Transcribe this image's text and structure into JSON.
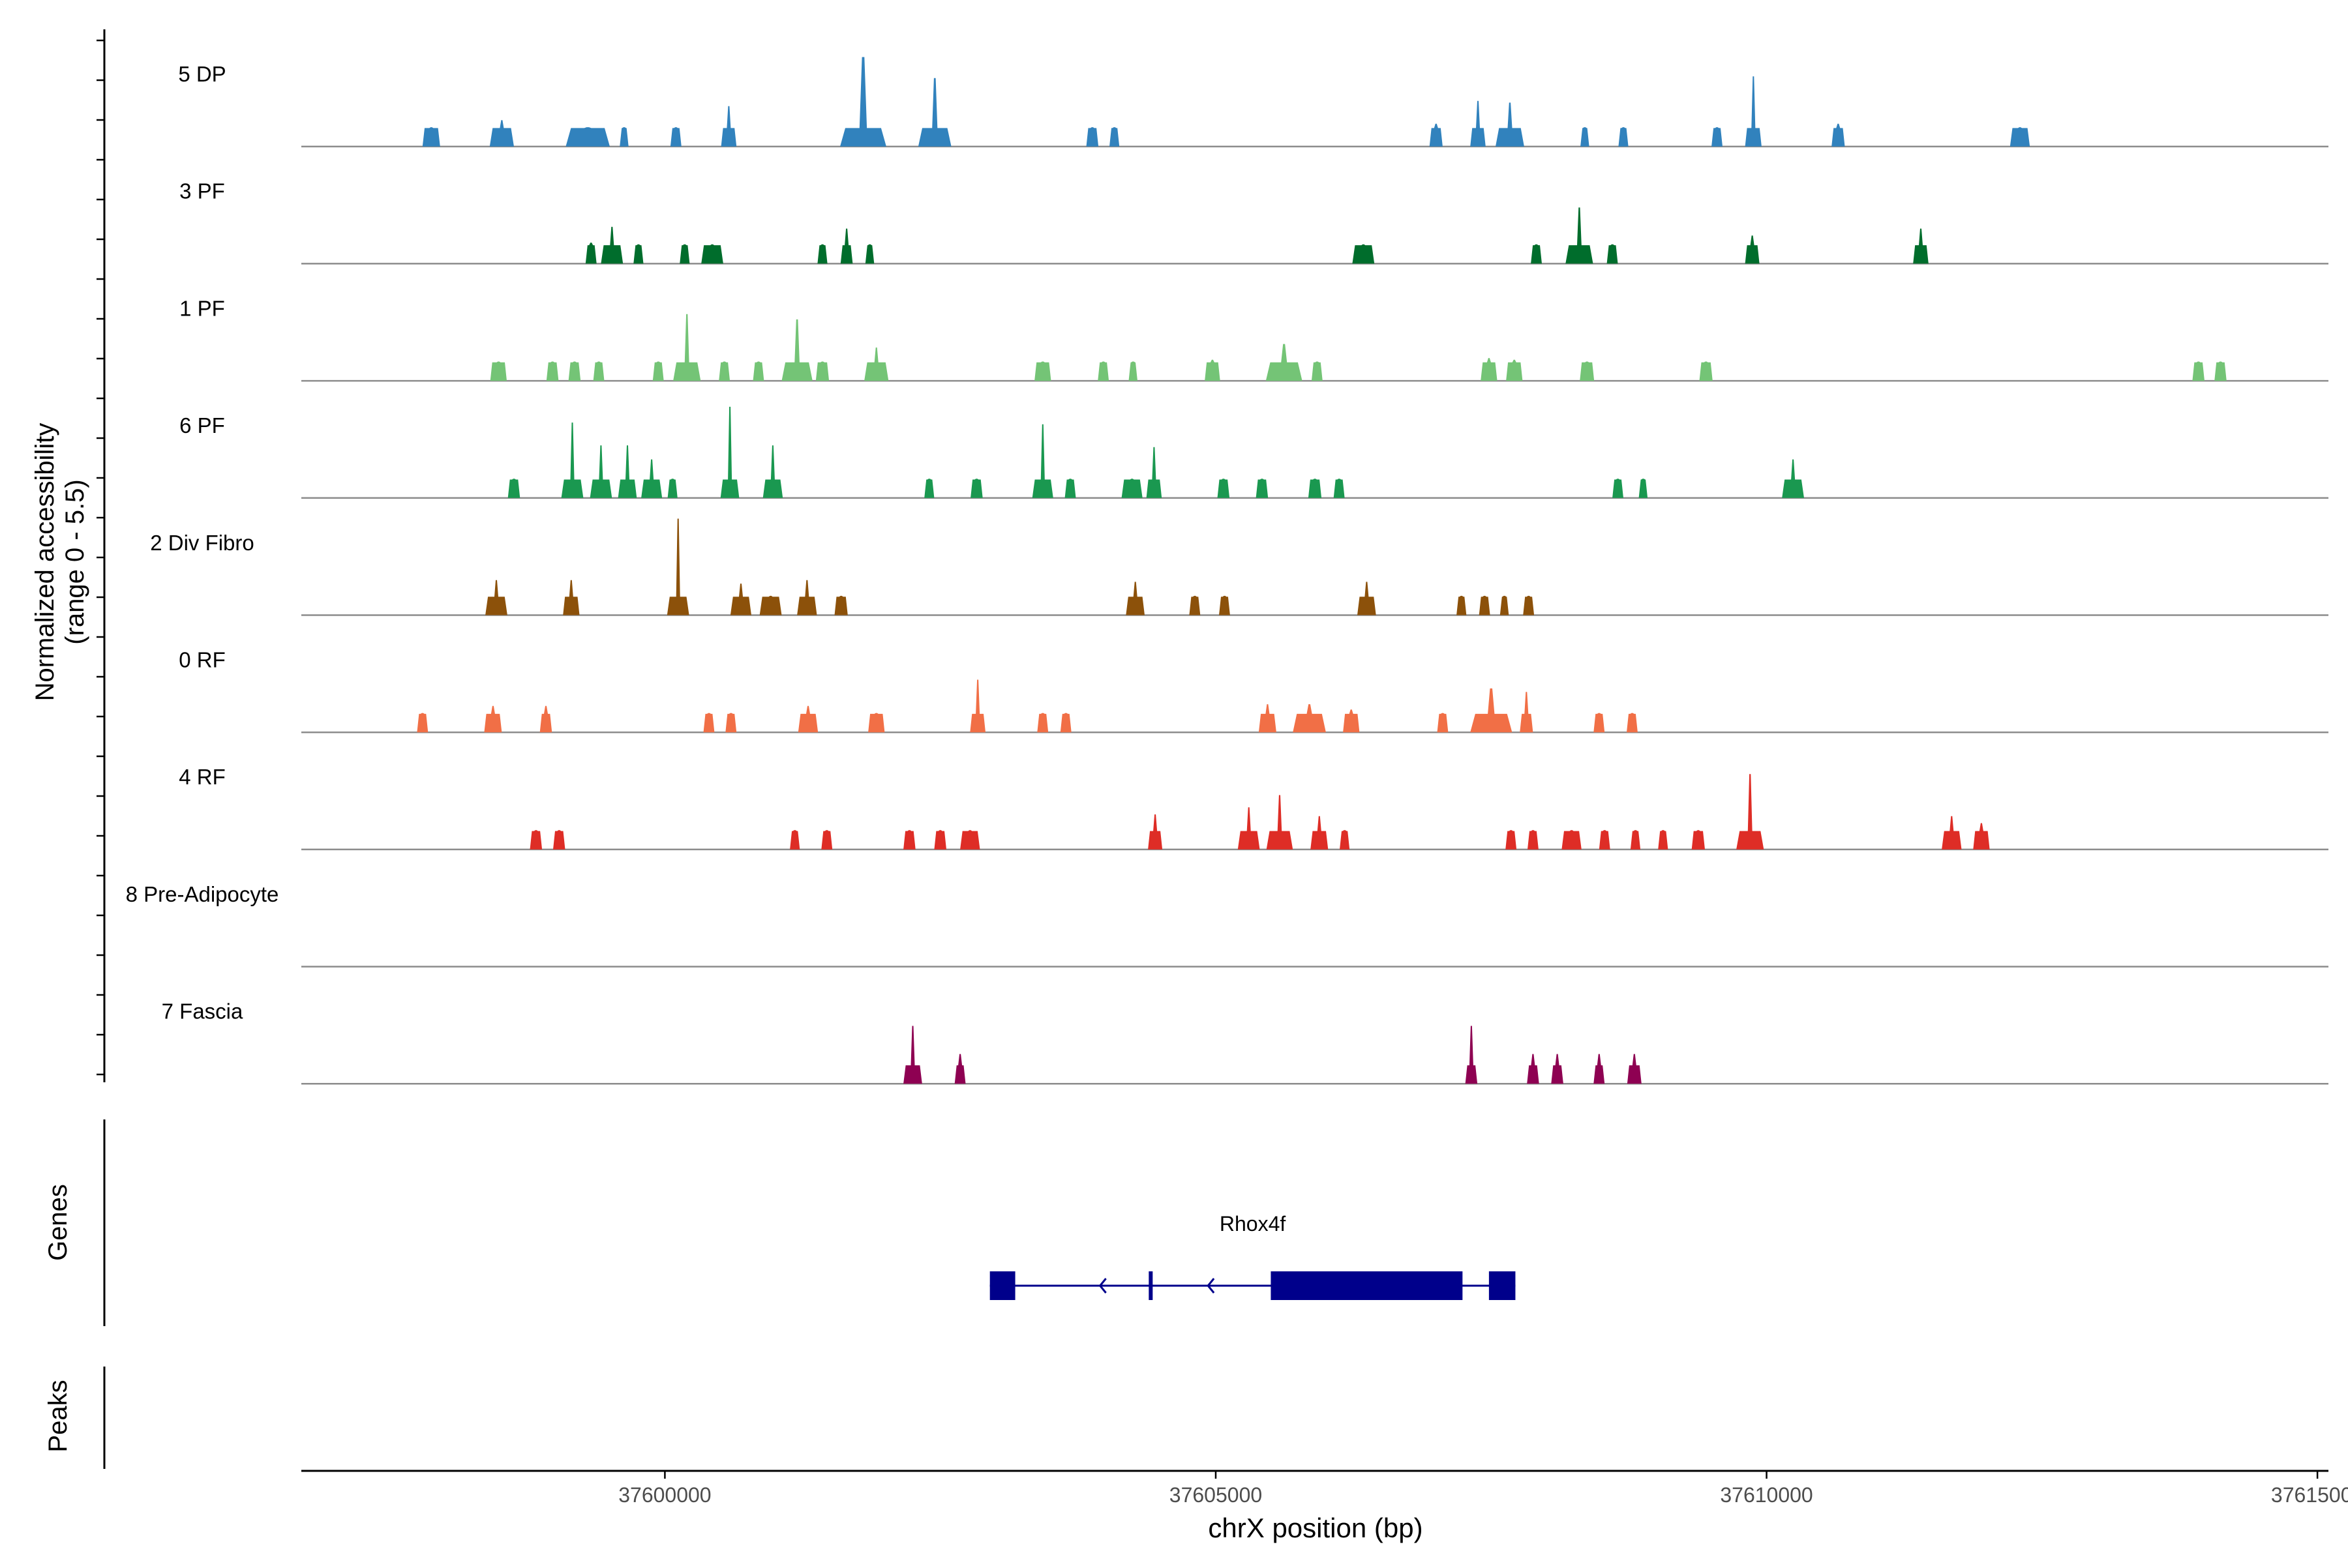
{
  "chart_data": {
    "type": "area",
    "title": "",
    "xlabel": "chrX position (bp)",
    "ylabel_line1": "Normalized accessibility",
    "ylabel_line2": "(range 0 - 5.5)",
    "y_range": [
      0,
      5.5
    ],
    "x_range": [
      37596700,
      37615100
    ],
    "x_ticks": [
      37600000,
      37605000,
      37610000,
      37615000
    ],
    "x_tick_labels": [
      "37600000",
      "37605000",
      "37610000",
      "37615000"
    ],
    "tracks": [
      {
        "name": "5 DP",
        "color": "#3182BD",
        "peaks": [
          [
            37597880,
            160,
            1.1
          ],
          [
            37598520,
            220,
            1.5
          ],
          [
            37599300,
            400,
            1.1
          ],
          [
            37599630,
            80,
            1.1
          ],
          [
            37600100,
            100,
            1.1
          ],
          [
            37600580,
            140,
            2.3
          ],
          [
            37601800,
            420,
            5.1
          ],
          [
            37602450,
            300,
            3.9
          ],
          [
            37603880,
            110,
            1.1
          ],
          [
            37604080,
            90,
            1.1
          ],
          [
            37607000,
            120,
            1.3
          ],
          [
            37607380,
            140,
            2.6
          ],
          [
            37607670,
            260,
            2.5
          ],
          [
            37608350,
            80,
            1.1
          ],
          [
            37608700,
            90,
            1.1
          ],
          [
            37609550,
            100,
            1.1
          ],
          [
            37609880,
            150,
            4.0
          ],
          [
            37610650,
            120,
            1.3
          ],
          [
            37612300,
            180,
            1.1
          ]
        ]
      },
      {
        "name": "3 PF",
        "color": "#006D2C",
        "peaks": [
          [
            37599330,
            100,
            1.2
          ],
          [
            37599520,
            200,
            2.1
          ],
          [
            37599760,
            90,
            1.1
          ],
          [
            37600180,
            90,
            1.1
          ],
          [
            37600430,
            200,
            1.1
          ],
          [
            37601430,
            90,
            1.1
          ],
          [
            37601650,
            110,
            2.0
          ],
          [
            37601860,
            80,
            1.1
          ],
          [
            37606340,
            200,
            1.1
          ],
          [
            37607910,
            100,
            1.1
          ],
          [
            37608300,
            250,
            3.2
          ],
          [
            37608600,
            100,
            1.1
          ],
          [
            37609870,
            130,
            1.6
          ],
          [
            37611400,
            140,
            2.0
          ]
        ]
      },
      {
        "name": "1 PF",
        "color": "#74C476",
        "peaks": [
          [
            37598490,
            150,
            1.1
          ],
          [
            37598980,
            110,
            1.1
          ],
          [
            37599180,
            110,
            1.1
          ],
          [
            37599400,
            100,
            1.1
          ],
          [
            37599940,
            100,
            1.1
          ],
          [
            37600200,
            250,
            3.8
          ],
          [
            37600540,
            100,
            1.1
          ],
          [
            37600850,
            100,
            1.1
          ],
          [
            37601200,
            280,
            3.5
          ],
          [
            37601430,
            120,
            1.1
          ],
          [
            37601920,
            220,
            1.9
          ],
          [
            37603430,
            150,
            1.1
          ],
          [
            37603980,
            100,
            1.1
          ],
          [
            37604250,
            80,
            1.1
          ],
          [
            37604970,
            140,
            1.2
          ],
          [
            37605620,
            330,
            2.1
          ],
          [
            37605920,
            100,
            1.1
          ],
          [
            37607480,
            150,
            1.3
          ],
          [
            37607710,
            150,
            1.2
          ],
          [
            37608370,
            130,
            1.1
          ],
          [
            37609450,
            120,
            1.1
          ],
          [
            37613920,
            110,
            1.1
          ],
          [
            37614120,
            110,
            1.1
          ]
        ]
      },
      {
        "name": "6 PF",
        "color": "#1A9850",
        "peaks": [
          [
            37598630,
            110,
            1.1
          ],
          [
            37599160,
            200,
            4.3
          ],
          [
            37599420,
            200,
            3.0
          ],
          [
            37599660,
            170,
            3.0
          ],
          [
            37599880,
            190,
            2.2
          ],
          [
            37600070,
            90,
            1.1
          ],
          [
            37600590,
            170,
            5.2
          ],
          [
            37600980,
            180,
            3.0
          ],
          [
            37602400,
            90,
            1.1
          ],
          [
            37602830,
            110,
            1.1
          ],
          [
            37603430,
            190,
            4.2
          ],
          [
            37603680,
            100,
            1.1
          ],
          [
            37604240,
            190,
            1.1
          ],
          [
            37604440,
            140,
            2.9
          ],
          [
            37605070,
            110,
            1.1
          ],
          [
            37605420,
            110,
            1.1
          ],
          [
            37605900,
            120,
            1.1
          ],
          [
            37606120,
            100,
            1.1
          ],
          [
            37608650,
            100,
            1.1
          ],
          [
            37608880,
            80,
            1.1
          ],
          [
            37610240,
            200,
            2.2
          ]
        ]
      },
      {
        "name": "2 Div Fibro",
        "color": "#8C510A",
        "peaks": [
          [
            37598470,
            200,
            2.0
          ],
          [
            37599150,
            150,
            2.0
          ],
          [
            37600120,
            200,
            5.5
          ],
          [
            37600690,
            190,
            1.8
          ],
          [
            37600960,
            200,
            1.1
          ],
          [
            37601290,
            180,
            2.0
          ],
          [
            37601600,
            120,
            1.1
          ],
          [
            37604270,
            170,
            1.9
          ],
          [
            37604810,
            100,
            1.1
          ],
          [
            37605080,
            100,
            1.1
          ],
          [
            37606370,
            170,
            1.9
          ],
          [
            37607230,
            90,
            1.1
          ],
          [
            37607440,
            100,
            1.1
          ],
          [
            37607620,
            80,
            1.1
          ],
          [
            37607840,
            100,
            1.1
          ]
        ]
      },
      {
        "name": "0 RF",
        "color": "#F16F46",
        "peaks": [
          [
            37597800,
            100,
            1.1
          ],
          [
            37598440,
            160,
            1.5
          ],
          [
            37598920,
            110,
            1.5
          ],
          [
            37600400,
            100,
            1.1
          ],
          [
            37600600,
            100,
            1.1
          ],
          [
            37601300,
            180,
            1.5
          ],
          [
            37601920,
            150,
            1.1
          ],
          [
            37602840,
            140,
            3.0
          ],
          [
            37603430,
            100,
            1.1
          ],
          [
            37603640,
            100,
            1.1
          ],
          [
            37605470,
            160,
            1.6
          ],
          [
            37605850,
            300,
            1.6
          ],
          [
            37606230,
            150,
            1.3
          ],
          [
            37607060,
            100,
            1.1
          ],
          [
            37607500,
            380,
            2.5
          ],
          [
            37607820,
            120,
            2.3
          ],
          [
            37608480,
            100,
            1.1
          ],
          [
            37608780,
            100,
            1.1
          ]
        ]
      },
      {
        "name": "4 RF",
        "color": "#DE2D26",
        "peaks": [
          [
            37598830,
            110,
            1.1
          ],
          [
            37599040,
            110,
            1.1
          ],
          [
            37601180,
            90,
            1.1
          ],
          [
            37601470,
            100,
            1.1
          ],
          [
            37602220,
            110,
            1.1
          ],
          [
            37602500,
            110,
            1.1
          ],
          [
            37602770,
            180,
            1.1
          ],
          [
            37604450,
            130,
            2.0
          ],
          [
            37605300,
            200,
            2.4
          ],
          [
            37605580,
            240,
            3.1
          ],
          [
            37605940,
            160,
            1.9
          ],
          [
            37606170,
            90,
            1.1
          ],
          [
            37607680,
            100,
            1.1
          ],
          [
            37607880,
            100,
            1.1
          ],
          [
            37608230,
            180,
            1.1
          ],
          [
            37608530,
            100,
            1.1
          ],
          [
            37608810,
            90,
            1.1
          ],
          [
            37609060,
            90,
            1.1
          ],
          [
            37609380,
            120,
            1.1
          ],
          [
            37609850,
            250,
            4.3
          ],
          [
            37611680,
            180,
            1.9
          ],
          [
            37611950,
            150,
            1.5
          ]
        ]
      },
      {
        "name": "8 Pre-Adipocyte",
        "color": "#7A0177",
        "peaks": []
      },
      {
        "name": "7 Fascia",
        "color": "#8E0152",
        "peaks": [
          [
            37602250,
            170,
            3.3
          ],
          [
            37602680,
            100,
            1.7
          ],
          [
            37607320,
            110,
            3.3
          ],
          [
            37607880,
            110,
            1.7
          ],
          [
            37608100,
            110,
            1.7
          ],
          [
            37608480,
            100,
            1.7
          ],
          [
            37608800,
            130,
            1.7
          ]
        ]
      }
    ],
    "genes_label": "Genes",
    "peaks_label": "Peaks",
    "gene": {
      "name": "Rhox4f",
      "color": "#00008B",
      "start": 37602950,
      "end": 37607720,
      "exons": [
        [
          37602950,
          37603180
        ],
        [
          37604400,
          37604420
        ],
        [
          37605500,
          37607240
        ],
        [
          37607480,
          37607720
        ]
      ],
      "arrows": [
        37603950,
        37604930
      ]
    }
  }
}
